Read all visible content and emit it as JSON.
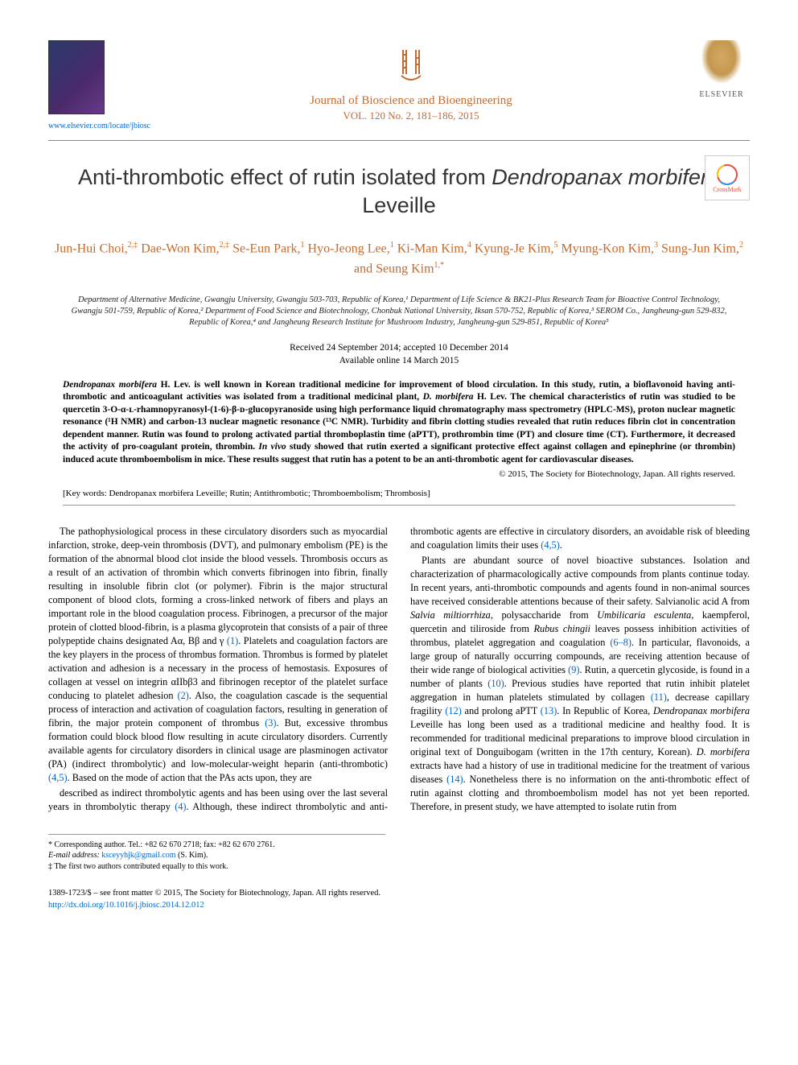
{
  "header": {
    "locate_link": "www.elsevier.com/locate/jbiosc",
    "journal_name": "Journal of Bioscience and Bioengineering",
    "journal_vol": "VOL. 120 No. 2, 181–186, 2015",
    "publisher": "ELSEVIER",
    "logo_color": "#c46a2e"
  },
  "title_pre": "Anti-thrombotic effect of rutin isolated from ",
  "title_species": "Dendropanax morbifera",
  "title_post": " Leveille",
  "authors_html": "Jun-Hui Choi,<sup>2,‡</sup> Dae-Won Kim,<sup>2,‡</sup> Se-Eun Park,<sup>1</sup> Hyo-Jeong Lee,<sup>1</sup> Ki-Man Kim,<sup>4</sup> Kyung-Je Kim,<sup>5</sup> Myung-Kon Kim,<sup>3</sup> Sung-Jun Kim,<sup>2</sup> and Seung Kim<sup>1,*</sup>",
  "affiliations": "Department of Alternative Medicine, Gwangju University, Gwangju 503-703, Republic of Korea,¹ Department of Life Science & BK21-Plus Research Team for Bioactive Control Technology, Gwangju 501-759, Republic of Korea,² Department of Food Science and Biotechnology, Chonbuk National University, Iksan 570-752, Republic of Korea,³ SEROM Co., Jangheung-gun 529-832, Republic of Korea,⁴ and Jangheung Research Institute for Mushroom Industry, Jangheung-gun 529-851, Republic of Korea⁵",
  "dates_received": "Received 24 September 2014; accepted 10 December 2014",
  "dates_online": "Available online 14 March 2015",
  "abstract": "<span class=\"italic\">Dendropanax morbifera</span> H. Lev. is well known in Korean traditional medicine for improvement of blood circulation. In this study, rutin, a bioflavonoid having anti-thrombotic and anticoagulant activities was isolated from a traditional medicinal plant, <span class=\"italic\">D. morbifera</span> H. Lev. The chemical characteristics of rutin was studied to be quercetin 3-O-α-ʟ-rhamnopyranosyl-(1-6)-β-ᴅ-glucopyranoside using high performance liquid chromatography mass spectrometry (HPLC-MS), proton nuclear magnetic resonance (¹H NMR) and carbon-13 nuclear magnetic resonance (¹³C NMR). Turbidity and fibrin clotting studies revealed that rutin reduces fibrin clot in concentration dependent manner. Rutin was found to prolong activated partial thromboplastin time (aPTT), prothrombin time (PT) and closure time (CT). Furthermore, it decreased the activity of pro-coagulant protein, thrombin. <span class=\"italic\">In vivo</span> study showed that rutin exerted a significant protective effect against collagen and epinephrine (or thrombin) induced acute thromboembolism in mice. These results suggest that rutin has a potent to be an anti-thrombotic agent for cardiovascular diseases.",
  "copyright": "© 2015, The Society for Biotechnology, Japan. All rights reserved.",
  "keywords_label": "[Key words:",
  "keywords": "Dendropanax morbifera Leveille; Rutin; Antithrombotic; Thromboembolism; Thrombosis]",
  "col1_p1": "The pathophysiological process in these circulatory disorders such as myocardial infarction, stroke, deep-vein thrombosis (DVT), and pulmonary embolism (PE) is the formation of the abnormal blood clot inside the blood vessels. Thrombosis occurs as a result of an activation of thrombin which converts fibrinogen into fibrin, finally resulting in insoluble fibrin clot (or polymer). Fibrin is the major structural component of blood clots, forming a cross-linked network of fibers and plays an important role in the blood coagulation process. Fibrinogen, a precursor of the major protein of clotted blood-fibrin, is a plasma glycoprotein that consists of a pair of three polypeptide chains designated Aα, Bβ and γ <span class=\"ref\">(1)</span>. Platelets and coagulation factors are the key players in the process of thrombus formation. Thrombus is formed by platelet activation and adhesion is a necessary in the process of hemostasis. Exposures of collagen at vessel on integrin αIIbβ3 and fibrinogen receptor of the platelet surface conducing to platelet adhesion <span class=\"ref\">(2)</span>. Also, the coagulation cascade is the sequential process of interaction and activation of coagulation factors, resulting in generation of fibrin, the major protein component of thrombus <span class=\"ref\">(3)</span>. But, excessive thrombus formation could block blood flow resulting in acute circulatory disorders. Currently available agents for circulatory disorders in clinical usage are plasminogen activator (PA) (indirect thrombolytic) and low-molecular-weight heparin (anti-thrombotic) <span class=\"ref\">(4,5)</span>. Based on the mode of action that the PAs acts upon, they are",
  "col2_p1": "described as indirect thrombolytic agents and has been using over the last several years in thrombolytic therapy <span class=\"ref\">(4)</span>. Although, these indirect thrombolytic and anti-thrombotic agents are effective in circulatory disorders, an avoidable risk of bleeding and coagulation limits their uses <span class=\"ref\">(4,5)</span>.",
  "col2_p2": "Plants are abundant source of novel bioactive substances. Isolation and characterization of pharmacologically active compounds from plants continue today. In recent years, anti-thrombotic compounds and agents found in non-animal sources have received considerable attentions because of their safety. Salvianolic acid A from <span class=\"italic\">Salvia miltiorrhiza</span>, polysaccharide from <span class=\"italic\">Umbilicaria esculenta</span>, kaempferol, quercetin and tiliroside from <span class=\"italic\">Rubus chingii</span> leaves possess inhibition activities of thrombus, platelet aggregation and coagulation <span class=\"ref\">(6–8)</span>. In particular, flavonoids, a large group of naturally occurring compounds, are receiving attention because of their wide range of biological activities <span class=\"ref\">(9)</span>. Rutin, a quercetin glycoside, is found in a number of plants <span class=\"ref\">(10)</span>. Previous studies have reported that rutin inhibit platelet aggregation in human platelets stimulated by collagen <span class=\"ref\">(11)</span>, decrease capillary fragility <span class=\"ref\">(12)</span> and prolong aPTT <span class=\"ref\">(13)</span>. In Republic of Korea, <span class=\"italic\">Dendropanax morbifera</span> Leveille has long been used as a traditional medicine and healthy food. It is recommended for traditional medicinal preparations to improve blood circulation in original text of Donguibogam (written in the 17th century, Korean). <span class=\"italic\">D. morbifera</span> extracts have had a history of use in traditional medicine for the treatment of various diseases <span class=\"ref\">(14)</span>. Nonetheless there is no information on the anti-thrombotic effect of rutin against clotting and thromboembolism model has not yet been reported. Therefore, in present study, we have attempted to isolate rutin from",
  "footnotes": {
    "corr": "* Corresponding author. Tel.: +82 62 670 2718; fax: +82 62 670 2761.",
    "email_label": "E-mail address:",
    "email": "ksceyyhjk@gmail.com",
    "email_name": "(S. Kim).",
    "equal": "‡ The first two authors contributed equally to this work."
  },
  "footer": {
    "issn": "1389-1723/$ – see front matter © 2015, The Society for Biotechnology, Japan. All rights reserved.",
    "doi": "http://dx.doi.org/10.1016/j.jbiosc.2014.12.012"
  },
  "colors": {
    "brand": "#c46a2e",
    "link": "#0066cc",
    "text": "#000000"
  }
}
